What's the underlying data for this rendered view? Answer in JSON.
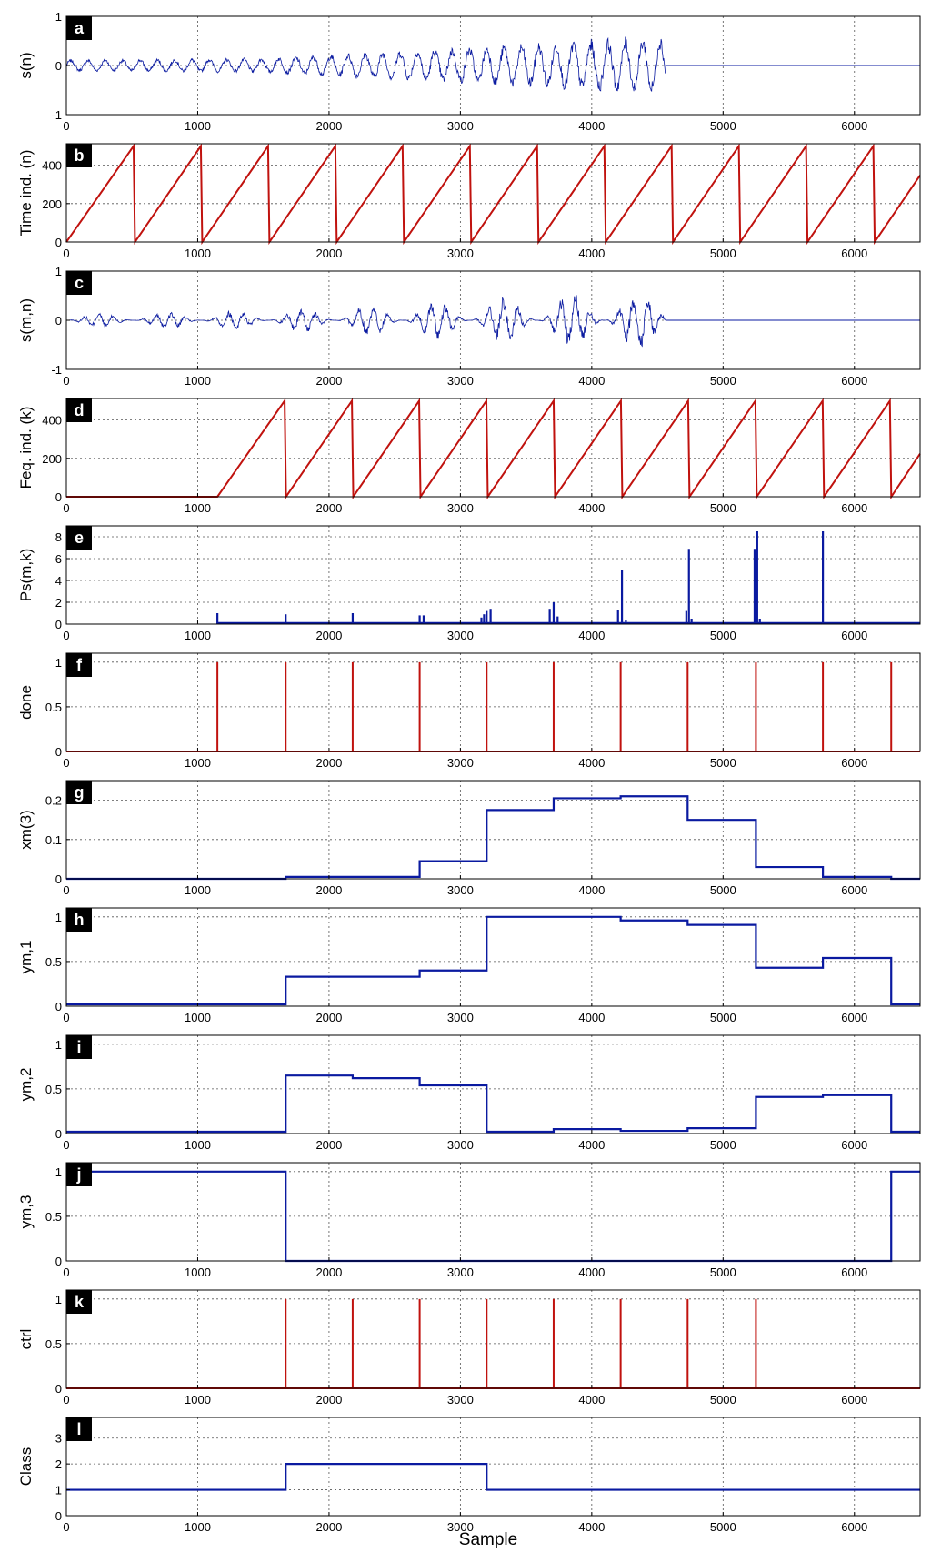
{
  "colors": {
    "blue": "#0a1aa0",
    "red": "#c0120e"
  },
  "figure": {
    "xlabel": "Sample"
  },
  "chart_data": [
    {
      "panel": "a",
      "ylabel": "s(n)",
      "type": "line",
      "color": "blue",
      "xlim": [
        0,
        6500
      ],
      "ylim": [
        -1,
        1
      ],
      "yticks": [
        "-1",
        "0",
        "1"
      ],
      "xticks": [
        "0",
        "1000",
        "2000",
        "3000",
        "4000",
        "5000",
        "6000"
      ],
      "signal": {
        "kind": "oscillation",
        "end": 4560,
        "envelope_x": [
          0,
          1500,
          2500,
          3500,
          4560
        ],
        "envelope_y": [
          0.12,
          0.15,
          0.3,
          0.45,
          0.6
        ]
      }
    },
    {
      "panel": "b",
      "ylabel": "Time ind. (n)",
      "type": "line",
      "color": "red",
      "xlim": [
        0,
        6500
      ],
      "ylim": [
        0,
        512
      ],
      "yticks": [
        "0",
        "200",
        "400"
      ],
      "xticks": [
        "0",
        "1000",
        "2000",
        "3000",
        "4000",
        "5000",
        "6000"
      ],
      "signal": {
        "kind": "sawtooth",
        "start": 0,
        "period": 512,
        "min": 0,
        "max": 500
      }
    },
    {
      "panel": "c",
      "ylabel": "s(m,n)",
      "type": "line",
      "color": "blue",
      "xlim": [
        0,
        6500
      ],
      "ylim": [
        -1,
        1
      ],
      "yticks": [
        "-1",
        "0",
        "1"
      ],
      "xticks": [
        "0",
        "1000",
        "2000",
        "3000",
        "4000",
        "5000",
        "6000"
      ],
      "signal": {
        "kind": "bursts",
        "end": 4560,
        "period": 512,
        "amplitude_x": [
          0,
          1500,
          2500,
          3500,
          4560
        ],
        "amplitude_y": [
          0.15,
          0.2,
          0.35,
          0.5,
          0.65
        ]
      }
    },
    {
      "panel": "d",
      "ylabel": "Feq. ind. (k)",
      "type": "line",
      "color": "red",
      "xlim": [
        0,
        6500
      ],
      "ylim": [
        0,
        512
      ],
      "yticks": [
        "0",
        "200",
        "400"
      ],
      "xticks": [
        "0",
        "1000",
        "2000",
        "3000",
        "4000",
        "5000",
        "6000"
      ],
      "signal": {
        "kind": "sawtooth",
        "start": 1150,
        "period": 512,
        "min": 0,
        "max": 500
      }
    },
    {
      "panel": "e",
      "ylabel": "Ps(m,k)",
      "type": "spikes",
      "color": "blue",
      "xlim": [
        0,
        6500
      ],
      "ylim": [
        0,
        9
      ],
      "yticks": [
        "0",
        "2",
        "4",
        "6",
        "8"
      ],
      "xticks": [
        "0",
        "1000",
        "2000",
        "3000",
        "4000",
        "5000",
        "6000"
      ],
      "baseline_start": 1150,
      "x": [
        1150,
        1670,
        2180,
        2690,
        2720,
        3160,
        3180,
        3200,
        3230,
        3680,
        3710,
        3740,
        4200,
        4230,
        4260,
        4720,
        4740,
        4760,
        5240,
        5260,
        5280,
        5760
      ],
      "y": [
        1.0,
        0.9,
        1.0,
        0.8,
        0.8,
        0.6,
        0.9,
        1.2,
        1.4,
        1.4,
        2.0,
        0.7,
        1.3,
        5.0,
        0.4,
        1.2,
        6.9,
        0.5,
        6.9,
        8.5,
        0.5,
        8.5
      ]
    },
    {
      "panel": "f",
      "ylabel": "done",
      "type": "stem",
      "color": "red",
      "xlim": [
        0,
        6500
      ],
      "ylim": [
        0,
        1.1
      ],
      "yticks": [
        "0",
        "0.5",
        "1"
      ],
      "xticks": [
        "0",
        "1000",
        "2000",
        "3000",
        "4000",
        "5000",
        "6000"
      ],
      "x": [
        1150,
        1670,
        2180,
        2690,
        3200,
        3710,
        4220,
        4730,
        5250,
        5760,
        6280
      ],
      "y": [
        1,
        1,
        1,
        1,
        1,
        1,
        1,
        1,
        1,
        1,
        1
      ]
    },
    {
      "panel": "g",
      "ylabel": "xm(3)",
      "type": "step",
      "color": "blue",
      "xlim": [
        0,
        6500
      ],
      "ylim": [
        0,
        0.25
      ],
      "yticks": [
        "0",
        "0.1",
        "0.2"
      ],
      "xticks": [
        "0",
        "1000",
        "2000",
        "3000",
        "4000",
        "5000",
        "6000"
      ],
      "x": [
        0,
        1670,
        2690,
        3200,
        3710,
        4220,
        4730,
        5250,
        5760,
        6280
      ],
      "y": [
        0.0,
        0.005,
        0.045,
        0.175,
        0.205,
        0.21,
        0.15,
        0.03,
        0.005,
        0.0
      ]
    },
    {
      "panel": "h",
      "ylabel": "ym,1",
      "type": "step",
      "color": "blue",
      "xlim": [
        0,
        6500
      ],
      "ylim": [
        0,
        1.1
      ],
      "yticks": [
        "0",
        "0.5",
        "1"
      ],
      "xticks": [
        "0",
        "1000",
        "2000",
        "3000",
        "4000",
        "5000",
        "6000"
      ],
      "x": [
        0,
        1670,
        2690,
        3200,
        3710,
        4220,
        4730,
        5250,
        5760,
        6280
      ],
      "y": [
        0.02,
        0.33,
        0.4,
        1.0,
        1.0,
        0.96,
        0.91,
        0.43,
        0.54,
        0.02
      ]
    },
    {
      "panel": "i",
      "ylabel": "ym,2",
      "type": "step",
      "color": "blue",
      "xlim": [
        0,
        6500
      ],
      "ylim": [
        0,
        1.1
      ],
      "yticks": [
        "0",
        "0.5",
        "1"
      ],
      "xticks": [
        "0",
        "1000",
        "2000",
        "3000",
        "4000",
        "5000",
        "6000"
      ],
      "x": [
        0,
        1670,
        2180,
        2690,
        3200,
        3710,
        4220,
        4730,
        5250,
        5760,
        6280
      ],
      "y": [
        0.02,
        0.65,
        0.62,
        0.54,
        0.02,
        0.05,
        0.03,
        0.06,
        0.41,
        0.43,
        0.02
      ]
    },
    {
      "panel": "j",
      "ylabel": "ym,3",
      "type": "step",
      "color": "blue",
      "xlim": [
        0,
        6500
      ],
      "ylim": [
        0,
        1.1
      ],
      "yticks": [
        "0",
        "0.5",
        "1"
      ],
      "xticks": [
        "0",
        "1000",
        "2000",
        "3000",
        "4000",
        "5000",
        "6000"
      ],
      "x": [
        0,
        1670,
        6280
      ],
      "y": [
        1.0,
        0.0,
        1.0
      ]
    },
    {
      "panel": "k",
      "ylabel": "ctrl",
      "type": "stem",
      "color": "red",
      "xlim": [
        0,
        6500
      ],
      "ylim": [
        0,
        1.1
      ],
      "yticks": [
        "0",
        "0.5",
        "1"
      ],
      "xticks": [
        "0",
        "1000",
        "2000",
        "3000",
        "4000",
        "5000",
        "6000"
      ],
      "x": [
        1670,
        2180,
        2690,
        3200,
        3710,
        4220,
        4730,
        5250
      ],
      "y": [
        1,
        1,
        1,
        1,
        1,
        1,
        1,
        1
      ]
    },
    {
      "panel": "l",
      "ylabel": "Class",
      "type": "step",
      "color": "blue",
      "xlim": [
        0,
        6500
      ],
      "ylim": [
        0,
        3.8
      ],
      "yticks": [
        "0",
        "1",
        "2",
        "3"
      ],
      "xticks": [
        "0",
        "1000",
        "2000",
        "3000",
        "4000",
        "5000",
        "6000"
      ],
      "x": [
        0,
        1670,
        3200
      ],
      "y": [
        1,
        2,
        1
      ]
    }
  ]
}
